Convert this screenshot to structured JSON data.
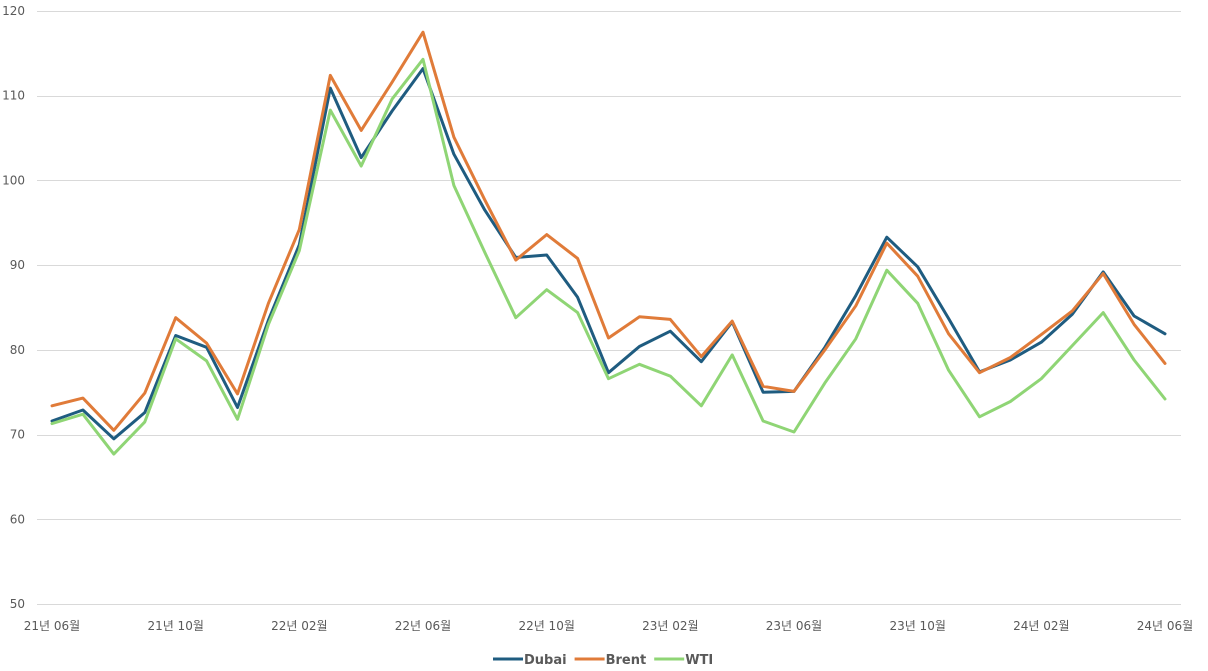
{
  "chart_data": {
    "type": "line",
    "title": "",
    "xlabel": "",
    "ylabel": "",
    "ylim": [
      50,
      120
    ],
    "yticks": [
      "50",
      "60",
      "70",
      "80",
      "90",
      "100",
      "110",
      "120"
    ],
    "grid": true,
    "legend_position": "bottom",
    "x_tick_labels": [
      {
        "index": 0,
        "label": "21년 06월"
      },
      {
        "index": 4,
        "label": "21년 10월"
      },
      {
        "index": 8,
        "label": "22년 02월"
      },
      {
        "index": 12,
        "label": "22년 06월"
      },
      {
        "index": 16,
        "label": "22년 10월"
      },
      {
        "index": 20,
        "label": "23년 02월"
      },
      {
        "index": 24,
        "label": "23년 06월"
      },
      {
        "index": 28,
        "label": "23년 10월"
      },
      {
        "index": 32,
        "label": "24년 02월"
      },
      {
        "index": 36,
        "label": "24년 06월"
      }
    ],
    "series": [
      {
        "name": "Dubai",
        "color": "#1f5c80",
        "values": [
          71.6,
          72.9,
          69.5,
          72.6,
          81.7,
          80.3,
          73.2,
          83.5,
          92.4,
          110.9,
          102.7,
          108.2,
          113.2,
          103.1,
          96.5,
          90.9,
          91.2,
          86.2,
          77.3,
          80.4,
          82.2,
          78.6,
          83.3,
          75.0,
          75.1,
          80.3,
          86.4,
          93.3,
          89.8,
          83.7,
          77.4,
          78.8,
          80.9,
          84.2,
          89.2,
          84.0,
          81.9
        ]
      },
      {
        "name": "Brent",
        "color": "#e07b39",
        "values": [
          73.4,
          74.3,
          70.5,
          74.9,
          83.8,
          80.8,
          74.8,
          85.5,
          94.2,
          112.4,
          105.9,
          111.6,
          117.5,
          105.1,
          97.7,
          90.6,
          93.6,
          90.8,
          81.4,
          83.9,
          83.6,
          79.2,
          83.4,
          75.7,
          75.1,
          80.0,
          85.2,
          92.6,
          88.7,
          81.9,
          77.3,
          79.1,
          81.8,
          84.6,
          89.0,
          83.0,
          78.4
        ]
      },
      {
        "name": "WTI",
        "color": "#8fd575",
        "values": [
          71.3,
          72.4,
          67.7,
          71.5,
          81.3,
          78.7,
          71.8,
          83.0,
          91.7,
          108.3,
          101.7,
          109.6,
          114.3,
          99.4,
          91.5,
          83.8,
          87.1,
          84.4,
          76.6,
          78.3,
          76.9,
          73.4,
          79.4,
          71.6,
          70.3,
          76.1,
          81.3,
          89.4,
          85.5,
          77.6,
          72.1,
          73.9,
          76.6,
          80.5,
          84.4,
          78.8,
          74.2
        ]
      }
    ]
  }
}
